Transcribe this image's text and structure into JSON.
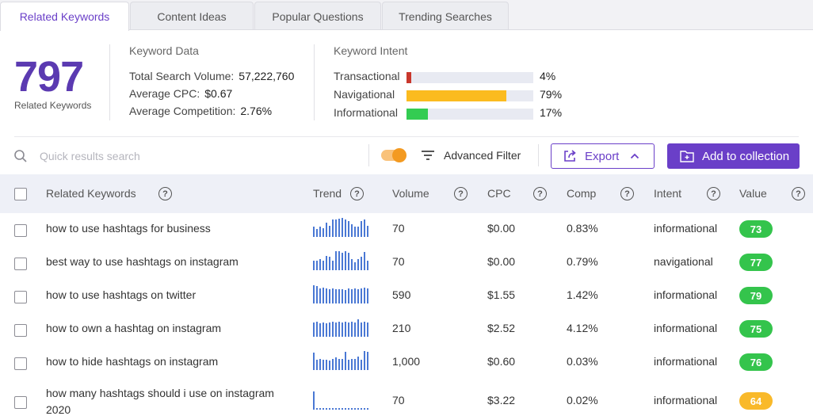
{
  "tabs": [
    {
      "label": "Related Keywords",
      "active": true
    },
    {
      "label": "Content Ideas",
      "active": false
    },
    {
      "label": "Popular Questions",
      "active": false
    },
    {
      "label": "Trending Searches",
      "active": false
    }
  ],
  "summary": {
    "count": "797",
    "count_label": "Related Keywords",
    "keyword_data": {
      "title": "Keyword Data",
      "total_search_volume_label": "Total Search Volume:",
      "total_search_volume": "57,222,760",
      "avg_cpc_label": "Average CPC:",
      "avg_cpc": "$0.67",
      "avg_competition_label": "Average Competition:",
      "avg_competition": "2.76%"
    },
    "intent": {
      "title": "Keyword Intent",
      "items": [
        {
          "label": "Transactional",
          "pct": "4%",
          "value": 0.04,
          "color": "#c9372c"
        },
        {
          "label": "Navigational",
          "pct": "79%",
          "value": 0.79,
          "color": "#fbbb1f"
        },
        {
          "label": "Informational",
          "pct": "17%",
          "value": 0.17,
          "color": "#33cc52"
        }
      ]
    }
  },
  "toolbar": {
    "search_placeholder": "Quick results search",
    "advanced_filter_label": "Advanced Filter",
    "export_label": "Export",
    "add_label": "Add to collection",
    "toggle_on": true
  },
  "table": {
    "headers": {
      "keyword": "Related Keywords",
      "trend": "Trend",
      "volume": "Volume",
      "cpc": "CPC",
      "comp": "Comp",
      "intent": "Intent",
      "value": "Value"
    },
    "rows": [
      {
        "keyword": "how to use hashtags for business",
        "volume": "70",
        "cpc": "$0.00",
        "comp": "0.83%",
        "intent": "informational",
        "value": "73",
        "trend": [
          0.55,
          0.4,
          0.55,
          0.45,
          0.75,
          0.6,
          0.9,
          0.9,
          0.95,
          1,
          0.9,
          0.85,
          0.65,
          0.55,
          0.55,
          0.85,
          0.9,
          0.6
        ]
      },
      {
        "keyword": "best way to use hashtags on instagram",
        "volume": "70",
        "cpc": "$0.00",
        "comp": "0.79%",
        "intent": "navigational",
        "value": "77",
        "trend": [
          0.5,
          0.5,
          0.6,
          0.5,
          0.75,
          0.7,
          0.5,
          1,
          1,
          0.9,
          1,
          0.9,
          0.6,
          0.4,
          0.6,
          0.7,
          0.95,
          0.5
        ]
      },
      {
        "keyword": "how to use hashtags on twitter",
        "volume": "590",
        "cpc": "$1.55",
        "comp": "1.42%",
        "intent": "informational",
        "value": "79",
        "trend": [
          0.95,
          0.9,
          0.8,
          0.85,
          0.8,
          0.75,
          0.8,
          0.75,
          0.75,
          0.75,
          0.7,
          0.8,
          0.75,
          0.8,
          0.75,
          0.8,
          0.85,
          0.8
        ]
      },
      {
        "keyword": "how to own a hashtag on instagram",
        "volume": "210",
        "cpc": "$2.52",
        "comp": "4.12%",
        "intent": "informational",
        "value": "75",
        "trend": [
          0.75,
          0.8,
          0.7,
          0.75,
          0.7,
          0.75,
          0.8,
          0.75,
          0.8,
          0.75,
          0.8,
          0.75,
          0.8,
          0.75,
          0.9,
          0.75,
          0.8,
          0.75
        ]
      },
      {
        "keyword": "how to hide hashtags on instagram",
        "volume": "1,000",
        "cpc": "$0.60",
        "comp": "0.03%",
        "intent": "informational",
        "value": "76",
        "trend": [
          0.9,
          0.55,
          0.6,
          0.55,
          0.55,
          0.5,
          0.6,
          0.65,
          0.6,
          0.6,
          0.95,
          0.55,
          0.6,
          0.6,
          0.7,
          0.55,
          1,
          0.95
        ]
      },
      {
        "keyword": "how many hashtags should i use on instagram 2020",
        "volume": "70",
        "cpc": "$3.22",
        "comp": "0.02%",
        "intent": "informational",
        "value": "64",
        "trend": [
          0.95,
          0.1,
          0,
          0.1,
          0.1,
          0,
          0,
          0,
          0,
          0,
          0,
          0,
          0,
          0,
          0,
          0,
          0,
          0
        ]
      }
    ]
  },
  "colors": {
    "accent": "#6a3fc8",
    "badge_green": "#34c44c",
    "badge_orange": "#f9b92a",
    "trend_bar": "#4a78d4"
  }
}
